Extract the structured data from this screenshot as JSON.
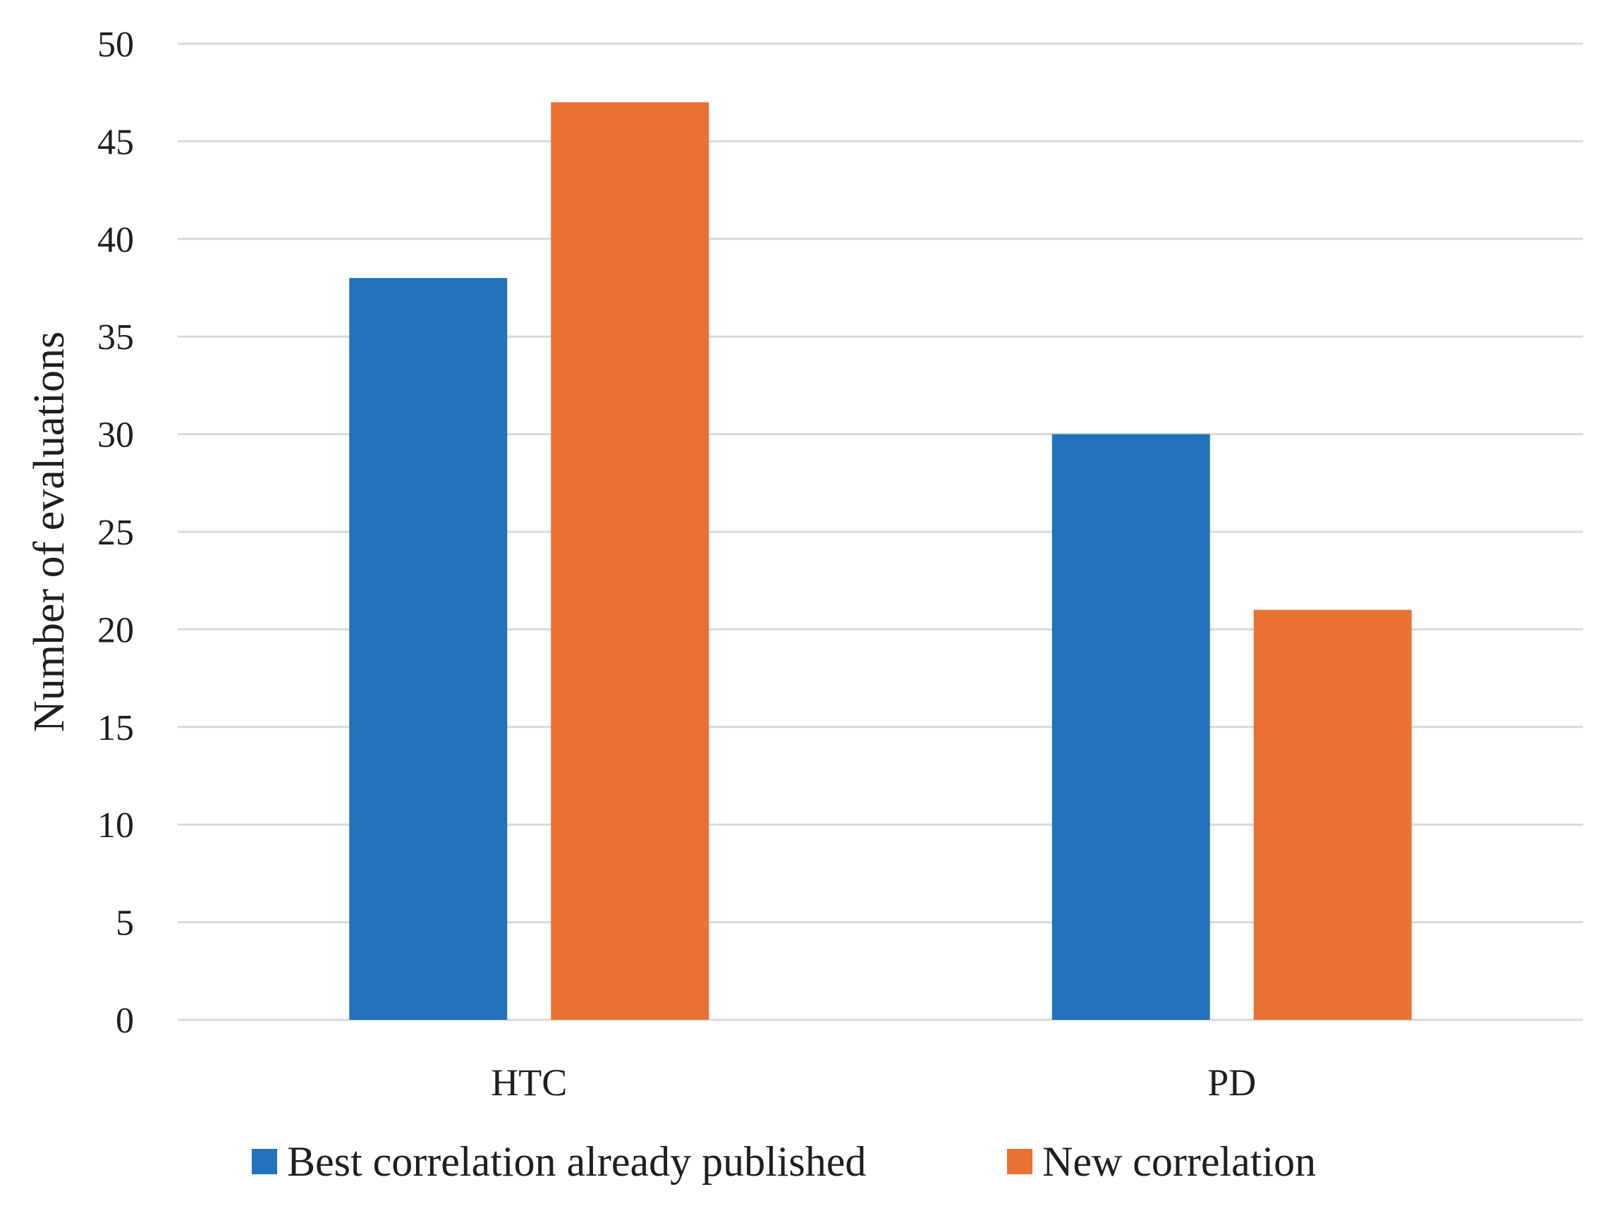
{
  "chart_data": {
    "type": "bar",
    "title": "",
    "xlabel": "",
    "ylabel": "Number of evaluations",
    "categories": [
      "HTC",
      "PD"
    ],
    "series": [
      {
        "name": "Best correlation already published",
        "values": [
          38,
          30
        ],
        "color": "#2272BD"
      },
      {
        "name": "New correlation",
        "values": [
          47,
          21
        ],
        "color": "#E97132"
      }
    ],
    "ylim": [
      0,
      50
    ],
    "yticks": [
      0,
      5,
      10,
      15,
      20,
      25,
      30,
      35,
      40,
      45,
      50
    ],
    "grid": true,
    "legend_position": "bottom"
  }
}
